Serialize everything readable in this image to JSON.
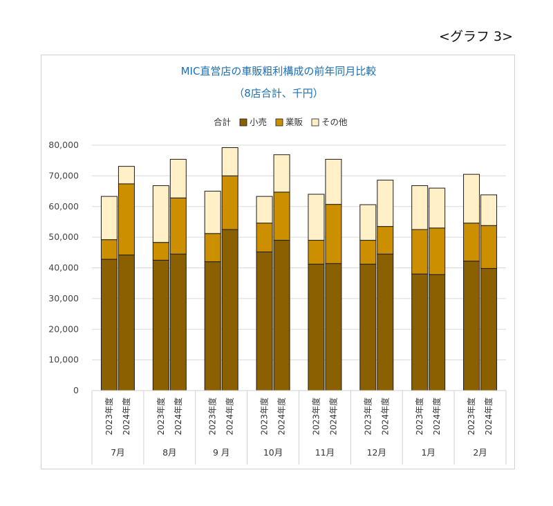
{
  "page_label": "<グラフ 3>",
  "colors": {
    "retail": "#8a6000",
    "wholesale": "#cc8f00",
    "other": "#fff0c8",
    "stroke": "#1a1a1a",
    "title": "#1a6fb5",
    "grid": "#d9d9d9"
  },
  "chart_data": {
    "type": "bar",
    "stacked": true,
    "title": "MIC直営店の車販粗利構成の前年同月比較",
    "subtitle": "（8店合計、千円）",
    "legend_title": "合計",
    "legend_position": "top",
    "grid": true,
    "ylim": [
      0,
      80000
    ],
    "yticks": [
      "0",
      "10,000",
      "20,000",
      "30,000",
      "40,000",
      "50,000",
      "60,000",
      "70,000",
      "80,000"
    ],
    "year_labels": [
      "2023年度",
      "2024年度"
    ],
    "months": [
      "7月",
      "8月",
      "9 月",
      "10月",
      "11月",
      "12月",
      "1月",
      "2月"
    ],
    "series": [
      {
        "name": "小売",
        "values": [
          42800,
          44200,
          42500,
          44500,
          42000,
          52500,
          45200,
          49000,
          41200,
          41400,
          41200,
          44500,
          38000,
          37800,
          42200,
          39800
        ]
      },
      {
        "name": "業販",
        "values": [
          6400,
          23200,
          5800,
          18300,
          9200,
          17500,
          9400,
          15700,
          7800,
          19300,
          7800,
          9000,
          14500,
          15200,
          12400,
          14000
        ]
      },
      {
        "name": "その他",
        "values": [
          14100,
          5700,
          18500,
          12600,
          13800,
          9200,
          8700,
          12200,
          15000,
          14700,
          11600,
          15100,
          14300,
          13000,
          15900,
          10000
        ]
      }
    ]
  }
}
